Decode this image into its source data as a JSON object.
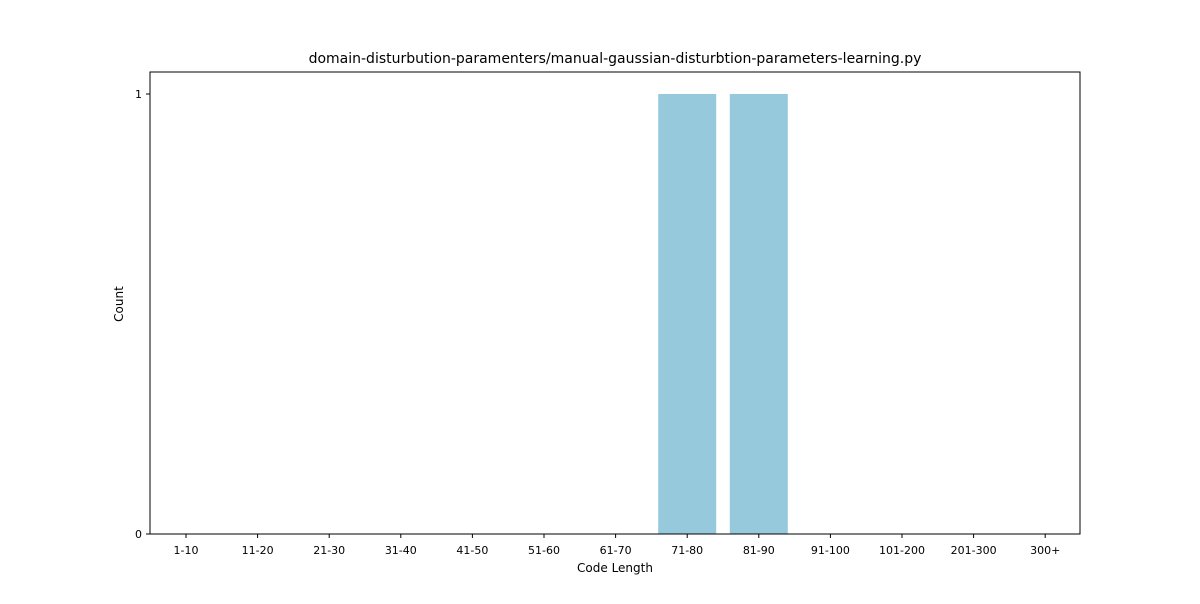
{
  "chart_data": {
    "type": "bar",
    "title": "domain-disturbution-paramenters/manual-gaussian-disturbtion-parameters-learning.py",
    "xlabel": "Code Length",
    "ylabel": "Count",
    "categories": [
      "1-10",
      "11-20",
      "21-30",
      "31-40",
      "41-50",
      "51-60",
      "61-70",
      "71-80",
      "81-90",
      "91-100",
      "101-200",
      "201-300",
      "300+"
    ],
    "values": [
      0,
      0,
      0,
      0,
      0,
      0,
      0,
      1,
      1,
      0,
      0,
      0,
      0
    ],
    "ylim": [
      0,
      1
    ],
    "yticks": [
      "0",
      "1"
    ],
    "bar_color": "#97c9dd",
    "grid": false,
    "legend": "none"
  }
}
